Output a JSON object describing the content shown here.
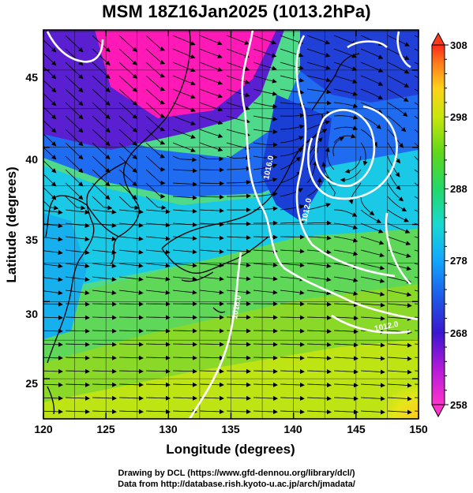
{
  "title": "MSM 18Z16Jan2025 (1013.2hPa)",
  "x_axis": {
    "label": "Longitude (degrees)",
    "ticks": [
      120,
      125,
      130,
      135,
      140,
      145,
      150
    ]
  },
  "y_axis": {
    "label": "Latitude  (degrees)",
    "ticks": [
      25,
      30,
      35,
      40,
      45
    ]
  },
  "map": {
    "lon_range": [
      120,
      150
    ],
    "lat_range": [
      22.4,
      47.6
    ],
    "grid_lon": [
      122.5,
      125,
      127.5,
      130,
      132.5,
      135,
      137.5,
      140,
      142.5,
      145,
      147.5
    ],
    "grid_lat": [
      25,
      27.5,
      30,
      32.5,
      35,
      37.5,
      40,
      42.5,
      45,
      47.5
    ],
    "contour_labels": [
      "1016.0",
      "1012.0",
      "1012.0",
      "1016.0"
    ],
    "vector_field": "surface wind streamlines",
    "shading": "temperature (K)"
  },
  "colorbar": {
    "min": 258,
    "max": 308,
    "labels": [
      258,
      268,
      278,
      288,
      298,
      308
    ],
    "colors": [
      "#ff33cc",
      "#cc1ad9",
      "#6a10d8",
      "#1f2fd4",
      "#1f7ef0",
      "#11b8ff",
      "#19e0d6",
      "#22dc8a",
      "#25cf3a",
      "#7cd916",
      "#c8e60d",
      "#f2e81a",
      "#ffb01f",
      "#ff5a1a",
      "#ff2a1a"
    ]
  },
  "credits": {
    "line1": "Drawing by DCL (https://www.gfd-dennou.org/library/dcl/)",
    "line2": "Data from http://database.rish.kyoto-u.ac.jp/arch/jmadata/"
  }
}
